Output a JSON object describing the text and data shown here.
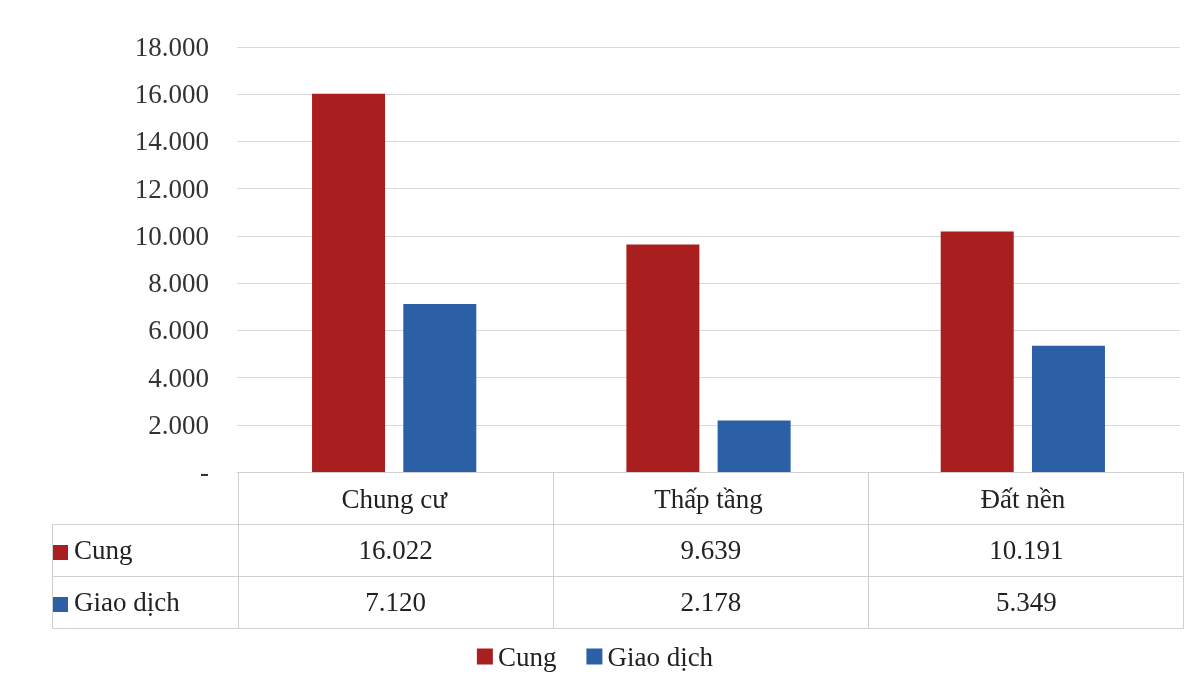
{
  "chart_data": {
    "type": "bar",
    "categories": [
      "Chung cư",
      "Thấp tầng",
      "Đất nền"
    ],
    "series": [
      {
        "name": "Cung",
        "color": "#a91e1e",
        "values": [
          16022,
          9639,
          10191
        ],
        "value_labels": [
          "16.022",
          "9.639",
          "10.191"
        ]
      },
      {
        "name": "Giao dịch",
        "color": "#2b5fa6",
        "values": [
          7120,
          2178,
          5349
        ],
        "value_labels": [
          "7.120",
          "2.178",
          "5.349"
        ]
      }
    ],
    "ylim": [
      0,
      18000
    ],
    "yticks": [
      {
        "value": 0,
        "label": "-"
      },
      {
        "value": 2000,
        "label": "2.000"
      },
      {
        "value": 4000,
        "label": "4.000"
      },
      {
        "value": 6000,
        "label": "6.000"
      },
      {
        "value": 8000,
        "label": "8.000"
      },
      {
        "value": 10000,
        "label": "10.000"
      },
      {
        "value": 12000,
        "label": "12.000"
      },
      {
        "value": 14000,
        "label": "14.000"
      },
      {
        "value": 16000,
        "label": "16.000"
      },
      {
        "value": 18000,
        "label": "18.000"
      }
    ],
    "grid": "y",
    "legend": "bottom"
  }
}
